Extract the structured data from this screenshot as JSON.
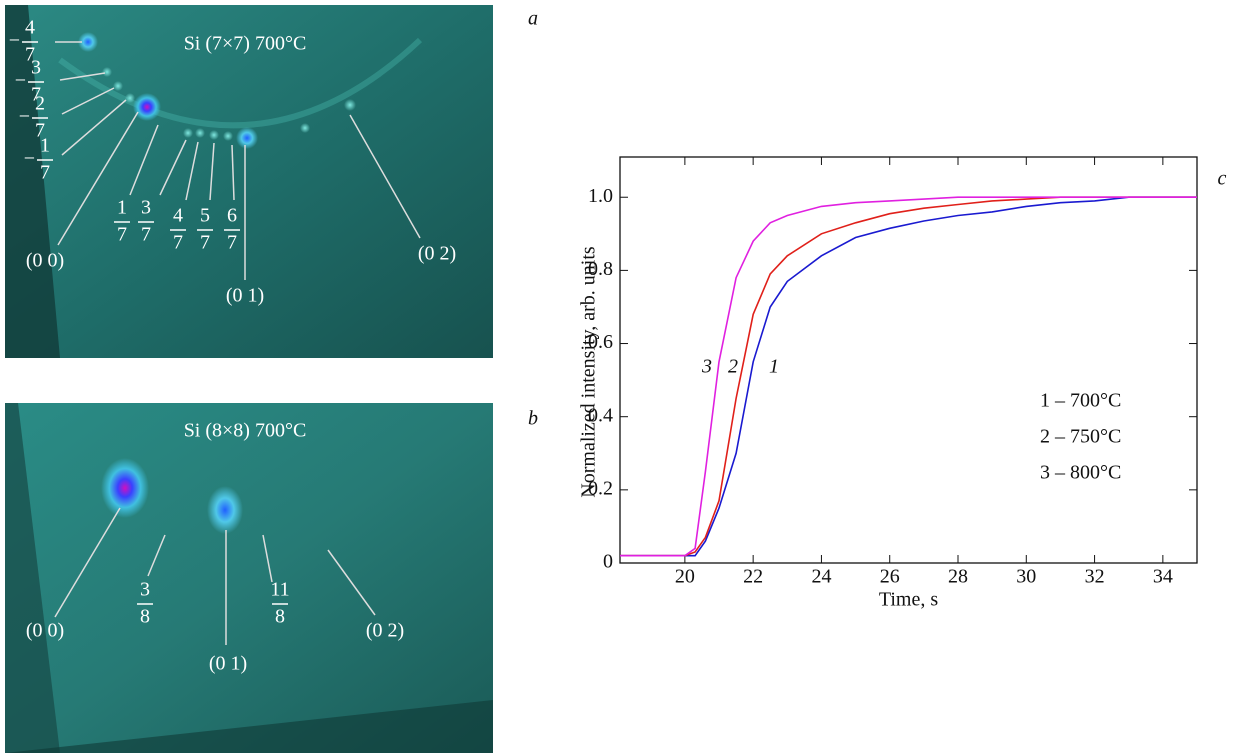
{
  "panels": [
    {
      "letter": "a",
      "title": "Si (7×7) 700°C",
      "labels": [
        {
          "sign": "−",
          "num": 4,
          "den": 7
        },
        {
          "sign": "−",
          "num": 3,
          "den": 7
        },
        {
          "sign": "−",
          "num": 2,
          "den": 7
        },
        {
          "sign": "−",
          "num": 1,
          "den": 7
        },
        {
          "text": "(0 0)"
        },
        {
          "num": 1,
          "den": 7
        },
        {
          "num": 3,
          "den": 7
        },
        {
          "num": 4,
          "den": 7
        },
        {
          "num": 5,
          "den": 7
        },
        {
          "num": 6,
          "den": 7
        },
        {
          "text": "(0 1)"
        },
        {
          "text": "(0 2)"
        }
      ]
    },
    {
      "letter": "b",
      "title": "Si (8×8) 700°C",
      "labels": [
        {
          "text": "(0 0)"
        },
        {
          "num": 3,
          "den": 8
        },
        {
          "text": "(0 1)"
        },
        {
          "num": 11,
          "den": 8
        },
        {
          "text": "(0 2)"
        }
      ]
    }
  ],
  "chart_data": {
    "type": "line",
    "letter": "c",
    "xlabel": "Time, s",
    "ylabel": "Normalized intensity, arb. units",
    "xlim": [
      18.1,
      35
    ],
    "ylim": [
      0,
      1.11
    ],
    "xticks": [
      20,
      22,
      24,
      26,
      28,
      30,
      32,
      34
    ],
    "yticks": [
      0,
      0.2,
      0.4,
      0.6,
      0.8,
      {
        "value": 1,
        "label": "1.0"
      }
    ],
    "x": [
      18.1,
      19,
      20,
      20.3,
      20.6,
      21,
      21.5,
      22,
      22.5,
      23,
      24,
      25,
      26,
      27,
      28,
      29,
      30,
      31,
      32,
      33,
      34,
      35
    ],
    "series": [
      {
        "label": "1",
        "name": "1 – 700°C",
        "color": "#1a1ad0",
        "values": [
          0.02,
          0.02,
          0.02,
          0.02,
          0.06,
          0.15,
          0.3,
          0.55,
          0.7,
          0.77,
          0.84,
          0.89,
          0.915,
          0.935,
          0.95,
          0.96,
          0.975,
          0.985,
          0.99,
          1.0,
          1.0,
          1.0
        ]
      },
      {
        "label": "2",
        "name": "2 – 750°C",
        "color": "#e0201a",
        "values": [
          0.02,
          0.02,
          0.02,
          0.03,
          0.07,
          0.17,
          0.45,
          0.68,
          0.79,
          0.84,
          0.9,
          0.93,
          0.955,
          0.97,
          0.98,
          0.99,
          0.995,
          1.0,
          1.0,
          1.0,
          1.0,
          1.0
        ]
      },
      {
        "label": "3",
        "name": "3 – 800°C",
        "color": "#e020e0",
        "values": [
          0.02,
          0.02,
          0.02,
          0.04,
          0.25,
          0.55,
          0.78,
          0.88,
          0.93,
          0.95,
          0.975,
          0.985,
          0.99,
          0.995,
          1.0,
          1.0,
          1.0,
          1.0,
          1.0,
          1.0,
          1.0,
          1.0
        ]
      }
    ]
  }
}
